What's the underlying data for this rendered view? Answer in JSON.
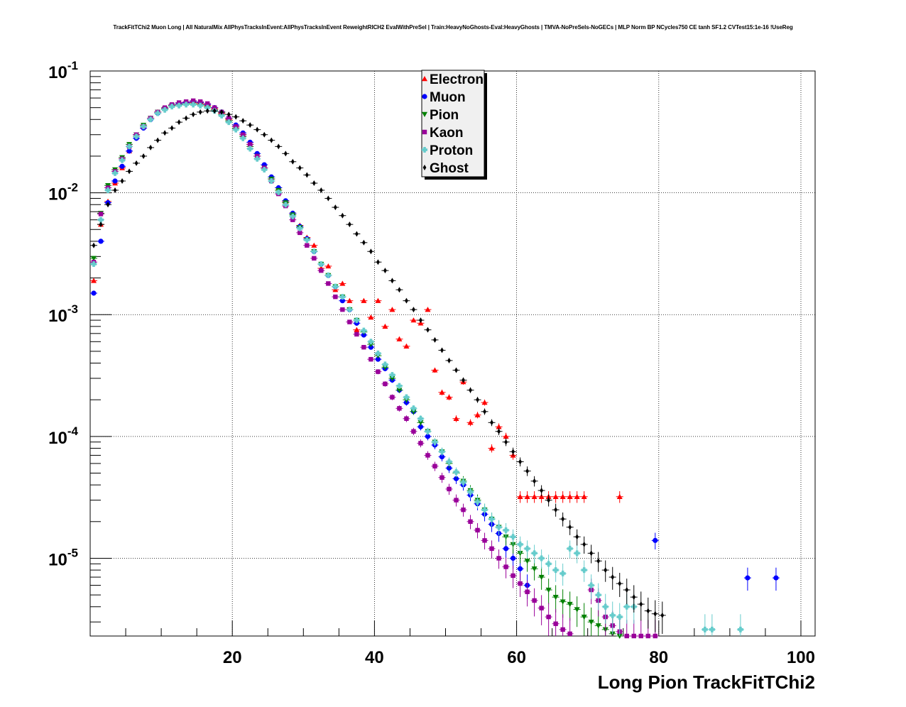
{
  "page": {
    "title": "TrackFitTChi2 Muon Long | All NaturalMix AllPhysTracksInEvent:AllPhysTracksInEvent ReweightRICH2 EvalWithPreSel | Train:HeavyNoGhosts-Eval:HeavyGhosts | TMVA-NoPreSels-NoGECs | MLP Norm BP NCycles750 CE tanh SF1.2 CVTest15:1e-16 !UseReg"
  },
  "chart_data": {
    "type": "scatter",
    "title": "TrackFitTChi2 Muon Long | All NaturalMix AllPhysTracksInEvent:AllPhysTracksInEvent ReweightRICH2 EvalWithPreSel | Train:HeavyNoGhosts-Eval:HeavyGhosts | TMVA-NoPreSels-NoGECs | MLP Norm BP NCycles750 CE tanh SF1.2 CVTest15:1e-16 !UseReg",
    "xlabel": "Long Pion TrackFitTChi2",
    "ylabel": "",
    "xlim": [
      0,
      102
    ],
    "ylim": [
      2.3e-06,
      0.1
    ],
    "yscale": "log",
    "grid": true,
    "legend_position": "top-center",
    "x_ticks": [
      20,
      40,
      60,
      80,
      100
    ],
    "x_tick_labels": [
      "20",
      "40",
      "60",
      "80",
      "100"
    ],
    "y_ticks": [
      1e-05,
      0.0001,
      0.001,
      0.01,
      0.1
    ],
    "y_tick_labels": [
      {
        "base": "10",
        "exp": "-5"
      },
      {
        "base": "10",
        "exp": "-4"
      },
      {
        "base": "10",
        "exp": "-3"
      },
      {
        "base": "10",
        "exp": "-2"
      },
      {
        "base": "10",
        "exp": "-1"
      }
    ],
    "series": [
      {
        "name": "Electron",
        "color": "#ff0000",
        "marker": "triangle-up",
        "x": [
          0.5,
          1.5,
          2.5,
          3.5,
          4.5,
          5.5,
          6.5,
          7.5,
          8.5,
          9.5,
          10.5,
          11.5,
          12.5,
          13.5,
          14.5,
          15.5,
          16.5,
          17.5,
          18.5,
          19.5,
          20.5,
          21.5,
          22.5,
          23.5,
          24.5,
          25.5,
          26.5,
          27.5,
          28.5,
          29.5,
          30.5,
          31.5,
          32.5,
          33.5,
          34.5,
          35.5,
          36.5,
          37.5,
          38.5,
          39.5,
          40.5,
          41.5,
          42.5,
          43.5,
          44.5,
          45.5,
          46.5,
          47.5,
          48.5,
          49.5,
          50.5,
          51.5,
          52.5,
          53.5,
          54.5,
          55.5,
          56.5,
          57.5,
          58.5,
          59.5,
          60.5,
          61.5,
          62.5,
          63.5,
          64.5,
          65.5,
          66.5,
          67.5,
          68.5,
          69.5,
          74.5
        ],
        "y": [
          0.0019,
          0.0055,
          0.0085,
          0.012,
          0.016,
          0.022,
          0.029,
          0.035,
          0.041,
          0.046,
          0.049,
          0.052,
          0.054,
          0.055,
          0.055,
          0.054,
          0.052,
          0.049,
          0.045,
          0.04,
          0.035,
          0.03,
          0.025,
          0.02,
          0.016,
          0.013,
          0.011,
          0.0085,
          0.0068,
          0.0054,
          0.0043,
          0.0037,
          0.0024,
          0.0025,
          0.0016,
          0.0018,
          0.0013,
          0.00075,
          0.0013,
          0.00095,
          0.0013,
          0.0008,
          0.0011,
          0.00063,
          0.00055,
          0.0009,
          0.00085,
          0.0011,
          0.00035,
          0.00023,
          0.00021,
          0.00014,
          0.00028,
          0.00013,
          0.00015,
          0.00019,
          8e-05,
          0.00012,
          0.0001,
          7e-05,
          3.2e-05,
          3.2e-05,
          3.2e-05,
          3.2e-05,
          3.2e-05,
          3.2e-05,
          3.2e-05,
          3.2e-05,
          3.2e-05,
          3.2e-05,
          3.2e-05
        ]
      },
      {
        "name": "Muon",
        "color": "#0000ff",
        "marker": "circle",
        "x": [
          0.5,
          1.5,
          2.5,
          3.5,
          4.5,
          5.5,
          6.5,
          7.5,
          8.5,
          9.5,
          10.5,
          11.5,
          12.5,
          13.5,
          14.5,
          15.5,
          16.5,
          17.5,
          18.5,
          19.5,
          20.5,
          21.5,
          22.5,
          23.5,
          24.5,
          25.5,
          26.5,
          27.5,
          28.5,
          29.5,
          30.5,
          31.5,
          32.5,
          33.5,
          34.5,
          35.5,
          36.5,
          37.5,
          38.5,
          39.5,
          40.5,
          41.5,
          42.5,
          43.5,
          44.5,
          45.5,
          46.5,
          47.5,
          48.5,
          49.5,
          50.5,
          51.5,
          52.5,
          53.5,
          54.5,
          55.5,
          56.5,
          57.5,
          58.5,
          59.5,
          60.5,
          61.5,
          79.5,
          92.5,
          96.5
        ],
        "y": [
          0.0015,
          0.004,
          0.0083,
          0.0125,
          0.0165,
          0.022,
          0.028,
          0.034,
          0.04,
          0.045,
          0.049,
          0.052,
          0.054,
          0.055,
          0.056,
          0.055,
          0.053,
          0.05,
          0.046,
          0.041,
          0.036,
          0.031,
          0.026,
          0.021,
          0.017,
          0.0135,
          0.011,
          0.0086,
          0.0068,
          0.0053,
          0.0042,
          0.0033,
          0.0026,
          0.0021,
          0.0017,
          0.0013,
          0.0011,
          0.00085,
          0.00068,
          0.00054,
          0.00043,
          0.00036,
          0.00029,
          0.00024,
          0.00019,
          0.00016,
          0.00012,
          0.0001,
          8.5e-05,
          6.8e-05,
          5.5e-05,
          4.5e-05,
          4e-05,
          3.3e-05,
          2.8e-05,
          2.3e-05,
          1.9e-05,
          1.6e-05,
          1.2e-05,
          1e-05,
          8.2e-06,
          6e-06,
          1.4e-05,
          6.9e-06,
          6.9e-06
        ]
      },
      {
        "name": "Pion",
        "color": "#008000",
        "marker": "triangle-down",
        "x": [
          0.5,
          1.5,
          2.5,
          3.5,
          4.5,
          5.5,
          6.5,
          7.5,
          8.5,
          9.5,
          10.5,
          11.5,
          12.5,
          13.5,
          14.5,
          15.5,
          16.5,
          17.5,
          18.5,
          19.5,
          20.5,
          21.5,
          22.5,
          23.5,
          24.5,
          25.5,
          26.5,
          27.5,
          28.5,
          29.5,
          30.5,
          31.5,
          32.5,
          33.5,
          34.5,
          35.5,
          36.5,
          37.5,
          38.5,
          39.5,
          40.5,
          41.5,
          42.5,
          43.5,
          44.5,
          45.5,
          46.5,
          47.5,
          48.5,
          49.5,
          50.5,
          51.5,
          52.5,
          53.5,
          54.5,
          55.5,
          56.5,
          57.5,
          58.5,
          59.5,
          60.5,
          61.5,
          62.5,
          63.5,
          64.5,
          65.5,
          66.5,
          67.5,
          68.5,
          69.5,
          70.5,
          71.5,
          72.5,
          73.5,
          74.5
        ],
        "y": [
          0.0029,
          0.0068,
          0.0115,
          0.0155,
          0.0195,
          0.025,
          0.03,
          0.036,
          0.041,
          0.046,
          0.049,
          0.052,
          0.053,
          0.054,
          0.054,
          0.053,
          0.051,
          0.048,
          0.044,
          0.039,
          0.034,
          0.029,
          0.024,
          0.02,
          0.016,
          0.013,
          0.0105,
          0.0083,
          0.0066,
          0.0052,
          0.0041,
          0.0033,
          0.0026,
          0.0021,
          0.0017,
          0.0014,
          0.0011,
          0.0009,
          0.00072,
          0.00057,
          0.00046,
          0.00037,
          0.0003,
          0.00024,
          0.0002,
          0.00016,
          0.00013,
          0.00011,
          9e-05,
          7.5e-05,
          6e-05,
          5e-05,
          4.3e-05,
          3.6e-05,
          3e-05,
          2.5e-05,
          2.1e-05,
          1.8e-05,
          1.5e-05,
          1.3e-05,
          1.1e-05,
          9.5e-06,
          8.2e-06,
          7e-06,
          5.5e-06,
          4.8e-06,
          4.4e-06,
          4.2e-06,
          3.8e-06,
          3.3e-06,
          3e-06,
          2.8e-06,
          2.6e-06,
          2.4e-06,
          2.3e-06
        ]
      },
      {
        "name": "Kaon",
        "color": "#990099",
        "marker": "square",
        "x": [
          0.5,
          1.5,
          2.5,
          3.5,
          4.5,
          5.5,
          6.5,
          7.5,
          8.5,
          9.5,
          10.5,
          11.5,
          12.5,
          13.5,
          14.5,
          15.5,
          16.5,
          17.5,
          18.5,
          19.5,
          20.5,
          21.5,
          22.5,
          23.5,
          24.5,
          25.5,
          26.5,
          27.5,
          28.5,
          29.5,
          30.5,
          31.5,
          32.5,
          33.5,
          34.5,
          35.5,
          36.5,
          37.5,
          38.5,
          39.5,
          40.5,
          41.5,
          42.5,
          43.5,
          44.5,
          45.5,
          46.5,
          47.5,
          48.5,
          49.5,
          50.5,
          51.5,
          52.5,
          53.5,
          54.5,
          55.5,
          56.5,
          57.5,
          58.5,
          59.5,
          60.5,
          61.5,
          62.5,
          63.5,
          64.5,
          65.5,
          66.5,
          67.5,
          68.5,
          69.5,
          70.5,
          71.5,
          72.5,
          73.5,
          74.5,
          75.5,
          76.5,
          77.5,
          78.5,
          79.5
        ],
        "y": [
          0.0027,
          0.0067,
          0.011,
          0.015,
          0.019,
          0.024,
          0.03,
          0.035,
          0.041,
          0.046,
          0.05,
          0.053,
          0.055,
          0.056,
          0.057,
          0.056,
          0.054,
          0.05,
          0.046,
          0.041,
          0.035,
          0.03,
          0.025,
          0.02,
          0.016,
          0.0125,
          0.0098,
          0.0078,
          0.006,
          0.0047,
          0.0037,
          0.0029,
          0.0023,
          0.0018,
          0.0014,
          0.0011,
          0.00087,
          0.00069,
          0.00054,
          0.00043,
          0.00034,
          0.00027,
          0.00021,
          0.00017,
          0.00014,
          0.00011,
          8.8e-05,
          7e-05,
          5.7e-05,
          4.6e-05,
          3.7e-05,
          3e-05,
          2.5e-05,
          2e-05,
          1.7e-05,
          1.4e-05,
          1.2e-05,
          1e-05,
          8.5e-06,
          7.2e-06,
          6.2e-06,
          5.3e-06,
          4.5e-06,
          3.9e-06,
          3.3e-06,
          2.9e-06,
          2.6e-06,
          2.4e-06,
          2.2e-06,
          2e-06,
          5.5e-06,
          4.5e-06,
          3.3e-06,
          2.8e-06,
          2.5e-06,
          2.3e-06,
          2.3e-06,
          2.3e-06,
          2.3e-06,
          2.3e-06
        ]
      },
      {
        "name": "Proton",
        "color": "#66cccc",
        "marker": "cross",
        "x": [
          0.5,
          1.5,
          2.5,
          3.5,
          4.5,
          5.5,
          6.5,
          7.5,
          8.5,
          9.5,
          10.5,
          11.5,
          12.5,
          13.5,
          14.5,
          15.5,
          16.5,
          17.5,
          18.5,
          19.5,
          20.5,
          21.5,
          22.5,
          23.5,
          24.5,
          25.5,
          26.5,
          27.5,
          28.5,
          29.5,
          30.5,
          31.5,
          32.5,
          33.5,
          34.5,
          35.5,
          36.5,
          37.5,
          38.5,
          39.5,
          40.5,
          41.5,
          42.5,
          43.5,
          44.5,
          45.5,
          46.5,
          47.5,
          48.5,
          49.5,
          50.5,
          51.5,
          52.5,
          53.5,
          54.5,
          55.5,
          56.5,
          57.5,
          58.5,
          59.5,
          60.5,
          61.5,
          62.5,
          63.5,
          64.5,
          65.5,
          66.5,
          67.5,
          68.5,
          69.5,
          70.5,
          71.5,
          72.5,
          73.5,
          74.5,
          75.5,
          76.5,
          86.5,
          87.5,
          91.5
        ],
        "y": [
          0.0026,
          0.006,
          0.0105,
          0.0145,
          0.0185,
          0.024,
          0.029,
          0.035,
          0.04,
          0.045,
          0.048,
          0.051,
          0.052,
          0.053,
          0.053,
          0.052,
          0.05,
          0.047,
          0.043,
          0.038,
          0.033,
          0.028,
          0.023,
          0.019,
          0.0155,
          0.0125,
          0.0101,
          0.008,
          0.0064,
          0.0051,
          0.0041,
          0.0033,
          0.0026,
          0.0021,
          0.0017,
          0.0014,
          0.0011,
          0.0009,
          0.00074,
          0.0006,
          0.00048,
          0.00039,
          0.00032,
          0.00026,
          0.00021,
          0.00017,
          0.00014,
          0.00011,
          9e-05,
          7.5e-05,
          6.2e-05,
          5.1e-05,
          4.2e-05,
          3.5e-05,
          2.9e-05,
          2.5e-05,
          2.1e-05,
          1.8e-05,
          1.7e-05,
          1.5e-05,
          1.3e-05,
          1.2e-05,
          1.1e-05,
          1e-05,
          9e-06,
          8e-06,
          7.5e-06,
          1.2e-05,
          1.1e-05,
          8e-06,
          6e-06,
          5e-06,
          4e-06,
          3.4e-06,
          3.3e-06,
          4e-06,
          4e-06,
          2.6e-06,
          2.6e-06,
          2.6e-06
        ]
      },
      {
        "name": "Ghost",
        "color": "#000000",
        "marker": "diamond",
        "x": [
          0.5,
          1.5,
          2.5,
          3.5,
          4.5,
          5.5,
          6.5,
          7.5,
          8.5,
          9.5,
          10.5,
          11.5,
          12.5,
          13.5,
          14.5,
          15.5,
          16.5,
          17.5,
          18.5,
          19.5,
          20.5,
          21.5,
          22.5,
          23.5,
          24.5,
          25.5,
          26.5,
          27.5,
          28.5,
          29.5,
          30.5,
          31.5,
          32.5,
          33.5,
          34.5,
          35.5,
          36.5,
          37.5,
          38.5,
          39.5,
          40.5,
          41.5,
          42.5,
          43.5,
          44.5,
          45.5,
          46.5,
          47.5,
          48.5,
          49.5,
          50.5,
          51.5,
          52.5,
          53.5,
          54.5,
          55.5,
          56.5,
          57.5,
          58.5,
          59.5,
          60.5,
          61.5,
          62.5,
          63.5,
          64.5,
          65.5,
          66.5,
          67.5,
          68.5,
          69.5,
          70.5,
          71.5,
          72.5,
          73.5,
          74.5,
          75.5,
          76.5,
          77.5,
          78.5,
          79.5,
          80.5
        ],
        "y": [
          0.0037,
          0.0055,
          0.008,
          0.0105,
          0.0125,
          0.015,
          0.0175,
          0.02,
          0.0235,
          0.027,
          0.031,
          0.034,
          0.038,
          0.041,
          0.044,
          0.046,
          0.047,
          0.047,
          0.046,
          0.044,
          0.042,
          0.039,
          0.036,
          0.033,
          0.03,
          0.027,
          0.024,
          0.021,
          0.018,
          0.016,
          0.014,
          0.012,
          0.0105,
          0.009,
          0.0076,
          0.0065,
          0.0055,
          0.0046,
          0.0039,
          0.0033,
          0.0027,
          0.0023,
          0.0019,
          0.0016,
          0.0013,
          0.0011,
          0.0009,
          0.00075,
          0.00062,
          0.00051,
          0.00042,
          0.00035,
          0.00029,
          0.00024,
          0.0002,
          0.00016,
          0.00013,
          0.00011,
          9e-05,
          7.5e-05,
          6.2e-05,
          5.2e-05,
          4.3e-05,
          3.6e-05,
          3e-05,
          2.5e-05,
          2.1e-05,
          1.8e-05,
          1.5e-05,
          1.3e-05,
          1.1e-05,
          9.5e-06,
          8e-06,
          7e-06,
          6.2e-06,
          5.5e-06,
          4.8e-06,
          4.2e-06,
          3.7e-06,
          3.5e-06,
          3.4e-06
        ]
      }
    ]
  }
}
